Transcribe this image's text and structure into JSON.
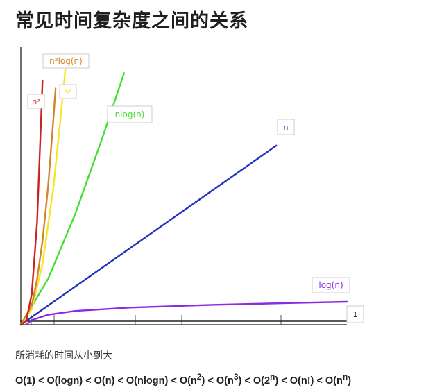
{
  "page": {
    "title": "常见时间复杂度之间的关系",
    "caption": "所消耗的时间从小到大",
    "ordering": "O(1) < O(logn) < O(n) < O(nlogn) < O(n^2) < O(n^3) < O(2^n) < O(n!) < O(n^n)"
  },
  "chart_data": {
    "type": "line",
    "title": "",
    "xlabel": "",
    "ylabel": "",
    "grid": false,
    "series": [
      {
        "name": "1",
        "color": "#222222",
        "values": [
          [
            0,
            1
          ],
          [
            60,
            1
          ]
        ]
      },
      {
        "name": "log(n)",
        "color": "#8a2be2",
        "values": [
          [
            1,
            0
          ],
          [
            2,
            1.2
          ],
          [
            5,
            2.6
          ],
          [
            10,
            3.6
          ],
          [
            20,
            4.5
          ],
          [
            35,
            5.2
          ],
          [
            50,
            5.7
          ],
          [
            60,
            6
          ]
        ]
      },
      {
        "name": "n",
        "color": "#2233bb",
        "values": [
          [
            0,
            0
          ],
          [
            47,
            47
          ]
        ]
      },
      {
        "name": "nlog(n)",
        "color": "#44dd33",
        "values": [
          [
            0,
            0
          ],
          [
            5,
            12
          ],
          [
            10,
            29
          ],
          [
            15,
            49
          ],
          [
            19,
            66
          ]
        ]
      },
      {
        "name": "n²",
        "color": "#f5e62a",
        "values": [
          [
            0,
            0
          ],
          [
            2,
            4
          ],
          [
            4,
            16
          ],
          [
            6,
            36
          ],
          [
            8,
            64
          ],
          [
            8.2,
            67
          ]
        ]
      },
      {
        "name": "n²log(n)",
        "color": "#d4852a",
        "values": [
          [
            0,
            0
          ],
          [
            2,
            5
          ],
          [
            3,
            12
          ],
          [
            4,
            22
          ],
          [
            5,
            36
          ],
          [
            6,
            54
          ],
          [
            6.4,
            62
          ]
        ]
      },
      {
        "name": "n³",
        "color": "#cc2222",
        "values": [
          [
            0,
            0
          ],
          [
            1,
            1
          ],
          [
            2,
            8
          ],
          [
            3,
            27
          ],
          [
            4,
            64
          ]
        ]
      }
    ],
    "xlim": [
      0,
      60
    ],
    "ylim": [
      0,
      67
    ]
  }
}
